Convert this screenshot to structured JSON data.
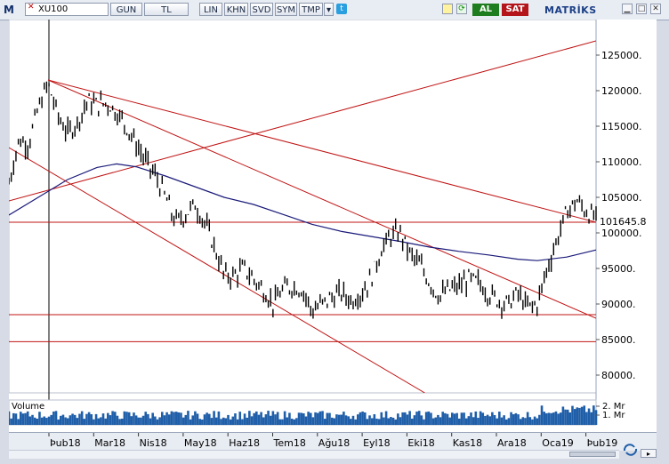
{
  "toolbar": {
    "symbol": "XU100",
    "buttons": [
      "GUN",
      "TL",
      "LIN",
      "KHN",
      "SVD",
      "SYM",
      "TMP"
    ],
    "buy_label": "AL",
    "sell_label": "SAT",
    "brand": "MATRİKS"
  },
  "colors": {
    "price": "#000000",
    "ma": "#1a1a7a",
    "trend": "#c01515",
    "volume": "#1f5ea8",
    "last_price_bg": "#ffffff"
  },
  "chart_data": {
    "type": "candlestick",
    "title": "",
    "last_price_label": "101645.8",
    "y_ticks": [
      "125000.",
      "120000.",
      "115000.",
      "110000.",
      "105000.",
      "100000.",
      "95000.",
      "90000.",
      "85000.",
      "80000."
    ],
    "y_tick_values": [
      125000,
      120000,
      115000,
      110000,
      105000,
      100000,
      95000,
      90000,
      85000,
      80000
    ],
    "ylim": [
      77500,
      130000
    ],
    "x_ticks": [
      "Þub18",
      "Mar18",
      "Nis18",
      "May18",
      "Haz18",
      "Tem18",
      "Ağu18",
      "Eyl18",
      "Eki18",
      "Kas18",
      "Ara18",
      "Oca19",
      "Þub19"
    ],
    "volume_label": "Volume",
    "volume_ticks": [
      "2. Mr",
      "1. Mr"
    ],
    "close_points": [
      [
        0,
        107000
      ],
      [
        2,
        113000
      ],
      [
        4,
        112500
      ],
      [
        6,
        117500
      ],
      [
        8,
        121000
      ],
      [
        10,
        116500
      ],
      [
        12,
        114000
      ],
      [
        14,
        115500
      ],
      [
        16,
        118500
      ],
      [
        18,
        118000
      ],
      [
        20,
        118300
      ],
      [
        22,
        117000
      ],
      [
        24,
        115000
      ],
      [
        26,
        112500
      ],
      [
        28,
        110000
      ],
      [
        30,
        108000
      ],
      [
        32,
        105000
      ],
      [
        34,
        101500
      ],
      [
        36,
        102500
      ],
      [
        38,
        104000
      ],
      [
        40,
        101500
      ],
      [
        42,
        98000
      ],
      [
        44,
        94000
      ],
      [
        46,
        94000
      ],
      [
        48,
        95000
      ],
      [
        50,
        93500
      ],
      [
        52,
        92000
      ],
      [
        54,
        90000
      ],
      [
        56,
        92000
      ],
      [
        58,
        92500
      ],
      [
        60,
        92000
      ],
      [
        62,
        89000
      ],
      [
        64,
        90000
      ],
      [
        66,
        91000
      ],
      [
        68,
        91500
      ],
      [
        70,
        90500
      ],
      [
        72,
        91500
      ],
      [
        74,
        93500
      ],
      [
        76,
        97500
      ],
      [
        78,
        99500
      ],
      [
        80,
        100000
      ],
      [
        82,
        97000
      ],
      [
        84,
        95500
      ],
      [
        86,
        93000
      ],
      [
        88,
        91000
      ],
      [
        90,
        92000
      ],
      [
        92,
        92500
      ],
      [
        94,
        93500
      ],
      [
        96,
        93000
      ],
      [
        98,
        91500
      ],
      [
        100,
        90500
      ],
      [
        102,
        90000
      ],
      [
        104,
        91500
      ],
      [
        106,
        89500
      ],
      [
        108,
        90000
      ],
      [
        110,
        95000
      ],
      [
        112,
        99000
      ],
      [
        114,
        103000
      ],
      [
        116,
        104500
      ],
      [
        118,
        103000
      ],
      [
        120,
        102000
      ]
    ],
    "ma_points": [
      [
        0,
        102500
      ],
      [
        6,
        105000
      ],
      [
        12,
        107500
      ],
      [
        18,
        109200
      ],
      [
        22,
        109700
      ],
      [
        26,
        109300
      ],
      [
        32,
        108000
      ],
      [
        38,
        106500
      ],
      [
        44,
        105000
      ],
      [
        50,
        104000
      ],
      [
        56,
        102600
      ],
      [
        62,
        101200
      ],
      [
        68,
        100200
      ],
      [
        74,
        99500
      ],
      [
        80,
        98800
      ],
      [
        86,
        98000
      ],
      [
        92,
        97400
      ],
      [
        98,
        96900
      ],
      [
        104,
        96300
      ],
      [
        108,
        96100
      ],
      [
        114,
        96600
      ],
      [
        120,
        97600
      ]
    ],
    "trend_lines": [
      {
        "p1": [
          0,
          104500
        ],
        "p2": [
          120,
          127000
        ]
      },
      {
        "p1": [
          8,
          121500
        ],
        "p2": [
          120,
          101500
        ]
      },
      {
        "p1": [
          8,
          121500
        ],
        "p2": [
          120,
          88000
        ]
      },
      {
        "p1": [
          0,
          112000
        ],
        "p2": [
          85,
          77500
        ]
      }
    ],
    "horizontal_lines": [
      101500,
      88500,
      84700
    ]
  }
}
